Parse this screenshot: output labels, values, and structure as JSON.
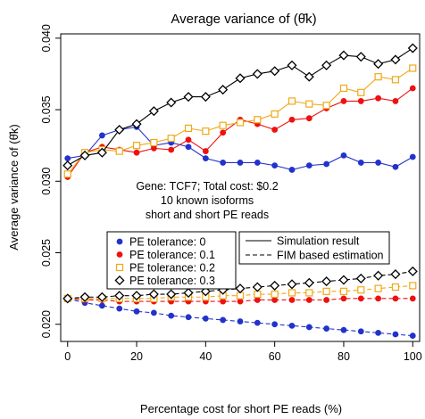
{
  "chart_data": {
    "type": "line",
    "title": "Average variance of (θ̂k)",
    "xlabel": "Percentage cost for short PE reads (%)",
    "ylabel": "Average variance of (θ̂k)",
    "xlim": [
      -2,
      102
    ],
    "ylim": [
      0.0188,
      0.0403
    ],
    "xticks": [
      0,
      20,
      40,
      60,
      80,
      100
    ],
    "yticks": [
      0.02,
      0.025,
      0.03,
      0.035,
      0.04
    ],
    "ytick_labels": [
      "0.020",
      "0.025",
      "0.030",
      "0.035",
      "0.040"
    ],
    "x": [
      0,
      5,
      10,
      15,
      20,
      25,
      30,
      35,
      40,
      45,
      50,
      55,
      60,
      65,
      70,
      75,
      80,
      85,
      90,
      95,
      100
    ],
    "series": [
      {
        "name": "PE tolerance: 0",
        "color": "#2233cc",
        "marker": "filled-circle",
        "simulation": [
          0.0316,
          0.0318,
          0.0332,
          0.0336,
          0.0338,
          0.0325,
          0.0327,
          0.0324,
          0.0316,
          0.0313,
          0.0313,
          0.0313,
          0.0311,
          0.0308,
          0.0311,
          0.0312,
          0.0318,
          0.0313,
          0.0313,
          0.031,
          0.0317
        ],
        "fim": [
          0.0218,
          0.0215,
          0.0213,
          0.0211,
          0.0209,
          0.0208,
          0.0206,
          0.0205,
          0.0204,
          0.0203,
          0.0202,
          0.0201,
          0.02,
          0.0199,
          0.0198,
          0.0197,
          0.0196,
          0.0195,
          0.0194,
          0.0193,
          0.0192
        ]
      },
      {
        "name": "PE tolerance: 0.1",
        "color": "#ee1111",
        "marker": "filled-circle",
        "simulation": [
          0.0303,
          0.032,
          0.0324,
          0.0322,
          0.032,
          0.0323,
          0.0322,
          0.0329,
          0.0321,
          0.0334,
          0.0343,
          0.034,
          0.0336,
          0.0343,
          0.0344,
          0.0351,
          0.0356,
          0.0356,
          0.0358,
          0.0356,
          0.0365
        ],
        "fim": [
          0.0218,
          0.0217,
          0.0217,
          0.0216,
          0.0216,
          0.0216,
          0.0216,
          0.0216,
          0.0216,
          0.0216,
          0.0216,
          0.0217,
          0.0217,
          0.0217,
          0.0217,
          0.0217,
          0.0218,
          0.0218,
          0.0218,
          0.0218,
          0.0218
        ]
      },
      {
        "name": "PE tolerance: 0.2",
        "color": "#f0a818",
        "marker": "open-square",
        "simulation": [
          0.0305,
          0.032,
          0.0322,
          0.0321,
          0.0325,
          0.0327,
          0.033,
          0.0337,
          0.0335,
          0.0339,
          0.0341,
          0.0343,
          0.0347,
          0.0356,
          0.0354,
          0.0353,
          0.0365,
          0.0362,
          0.0373,
          0.0371,
          0.0379
        ],
        "fim": [
          0.0218,
          0.0218,
          0.0218,
          0.0218,
          0.0218,
          0.0218,
          0.0219,
          0.0219,
          0.0219,
          0.022,
          0.022,
          0.0221,
          0.0221,
          0.0222,
          0.0222,
          0.0223,
          0.0223,
          0.0224,
          0.0225,
          0.0226,
          0.0227
        ]
      },
      {
        "name": "PE tolerance: 0.3",
        "color": "#000000",
        "marker": "open-diamond",
        "simulation": [
          0.0311,
          0.0318,
          0.032,
          0.0336,
          0.034,
          0.0349,
          0.0355,
          0.0359,
          0.0359,
          0.0364,
          0.0372,
          0.0375,
          0.0377,
          0.0381,
          0.0373,
          0.0381,
          0.0388,
          0.0387,
          0.0382,
          0.0385,
          0.0393
        ],
        "fim": [
          0.0218,
          0.0219,
          0.0219,
          0.022,
          0.022,
          0.0221,
          0.0221,
          0.0222,
          0.0223,
          0.0224,
          0.0225,
          0.0226,
          0.0227,
          0.0228,
          0.0229,
          0.023,
          0.0231,
          0.0232,
          0.0234,
          0.0235,
          0.0237
        ]
      }
    ],
    "legend_left": {
      "placement": "center-left",
      "entries": [
        "PE tolerance: 0",
        "PE tolerance: 0.1",
        "PE tolerance: 0.2",
        "PE tolerance: 0.3"
      ]
    },
    "legend_right": {
      "placement": "center-right",
      "entries": [
        {
          "label": "Simulation result",
          "linestyle": "solid"
        },
        {
          "label": "FIM based estimation",
          "linestyle": "dashed"
        }
      ]
    },
    "annotation": [
      "Gene: TCF7; Total cost: $0.2",
      "10 known isoforms",
      "short and short PE reads"
    ],
    "grid": false
  }
}
